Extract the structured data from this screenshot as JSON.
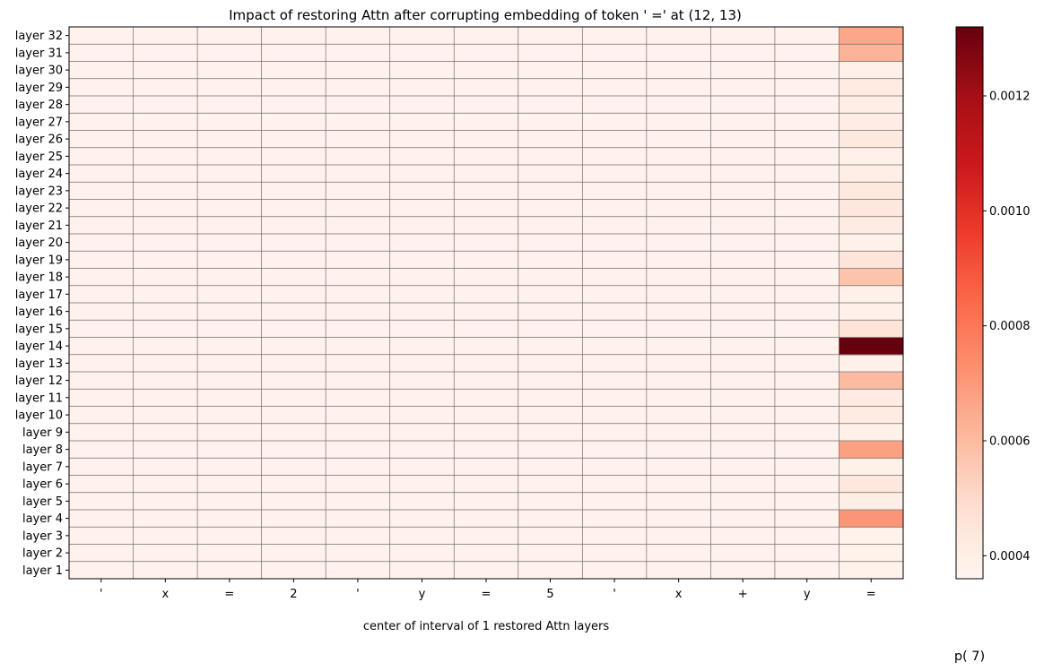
{
  "chart_data": {
    "type": "heatmap",
    "title": "Impact of restoring Attn after corrupting embedding of token ' =' at (12, 13)",
    "xlabel": "center of interval of 1 restored Attn layers",
    "corner_label": "p( 7)",
    "colormap": "Reds",
    "x_tick_labels": [
      "'",
      "x",
      "=",
      "2",
      "'",
      "y",
      "=",
      "5",
      "'",
      "x",
      "+",
      "y",
      "="
    ],
    "y_tick_labels": [
      "layer 1",
      "layer 2",
      "layer 3",
      "layer 4",
      "layer 5",
      "layer 6",
      "layer 7",
      "layer 8",
      "layer 9",
      "layer 10",
      "layer 11",
      "layer 12",
      "layer 13",
      "layer 14",
      "layer 15",
      "layer 16",
      "layer 17",
      "layer 18",
      "layer 19",
      "layer 20",
      "layer 21",
      "layer 22",
      "layer 23",
      "layer 24",
      "layer 25",
      "layer 26",
      "layer 27",
      "layer 28",
      "layer 29",
      "layer 30",
      "layer 31",
      "layer 32"
    ],
    "colorbar": {
      "range": [
        0.00036,
        0.00132
      ],
      "ticks": [
        0.0004,
        0.0006,
        0.0008,
        0.001,
        0.0012
      ],
      "tick_labels": [
        "0.0004",
        "0.0006",
        "0.0008",
        "0.0010",
        "0.0012"
      ]
    },
    "background_value": 0.000375,
    "last_column_values": [
      0.00038,
      0.00038,
      0.00038,
      0.00071,
      0.0004,
      0.00044,
      0.00039,
      0.00068,
      0.00039,
      0.00042,
      0.00042,
      0.0006,
      0.00039,
      0.00132,
      0.00046,
      0.00039,
      0.00039,
      0.00057,
      0.00045,
      0.00039,
      0.00042,
      0.00044,
      0.00043,
      0.0004,
      0.00039,
      0.00043,
      0.00041,
      0.0004,
      0.00042,
      0.00039,
      0.00062,
      0.00066
    ]
  }
}
